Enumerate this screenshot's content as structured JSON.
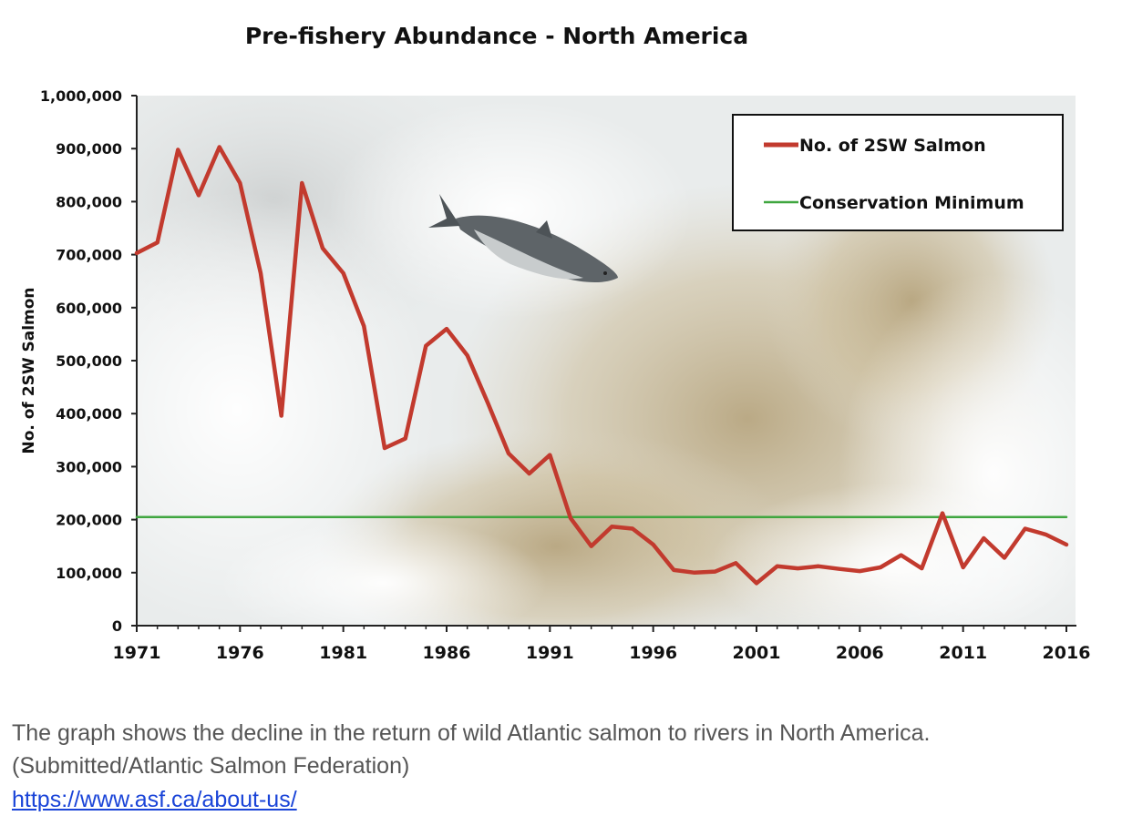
{
  "chart_data": {
    "type": "line",
    "title": "Pre-fishery Abundance - North America",
    "ylabel": "No. of 2SW Salmon",
    "xlabel": "",
    "xlim": [
      1971,
      2016
    ],
    "ylim": [
      0,
      1000000
    ],
    "x_ticks": [
      "1971",
      "1976",
      "1981",
      "1986",
      "1991",
      "1996",
      "2001",
      "2006",
      "2011",
      "2016"
    ],
    "y_ticks": [
      "0",
      "100,000",
      "200,000",
      "300,000",
      "400,000",
      "500,000",
      "600,000",
      "700,000",
      "800,000",
      "900,000",
      "1,000,000"
    ],
    "grid": false,
    "legend_position": "top-right",
    "background": "photo of rushing waterfall with a leaping salmon",
    "series": [
      {
        "name": "No. of 2SW Salmon",
        "color": "#c23a2e",
        "x": [
          1971,
          1972,
          1973,
          1974,
          1975,
          1976,
          1977,
          1978,
          1979,
          1980,
          1981,
          1982,
          1983,
          1984,
          1985,
          1986,
          1987,
          1988,
          1989,
          1990,
          1991,
          1992,
          1993,
          1994,
          1995,
          1996,
          1997,
          1998,
          1999,
          2000,
          2001,
          2002,
          2003,
          2004,
          2005,
          2006,
          2007,
          2008,
          2009,
          2010,
          2011,
          2012,
          2013,
          2014,
          2015,
          2016
        ],
        "values": [
          703000,
          723000,
          898000,
          812000,
          903000,
          835000,
          665000,
          396000,
          835000,
          712000,
          665000,
          565000,
          335000,
          353000,
          528000,
          560000,
          510000,
          420000,
          325000,
          287000,
          322000,
          203000,
          150000,
          187000,
          183000,
          153000,
          105000,
          100000,
          102000,
          118000,
          80000,
          112000,
          108000,
          112000,
          107000,
          103000,
          110000,
          133000,
          108000,
          212000,
          110000,
          165000,
          128000,
          183000,
          172000,
          153000
        ]
      },
      {
        "name": "Conservation Minimum",
        "color": "#3fa63f",
        "x": [
          1971,
          2016
        ],
        "values": [
          205000,
          205000
        ]
      }
    ]
  },
  "caption": {
    "line1": "The graph shows the decline in the return of wild Atlantic salmon to rivers in North America.",
    "line2": "(Submitted/Atlantic Salmon Federation)",
    "link": "https://www.asf.ca/about-us/"
  }
}
